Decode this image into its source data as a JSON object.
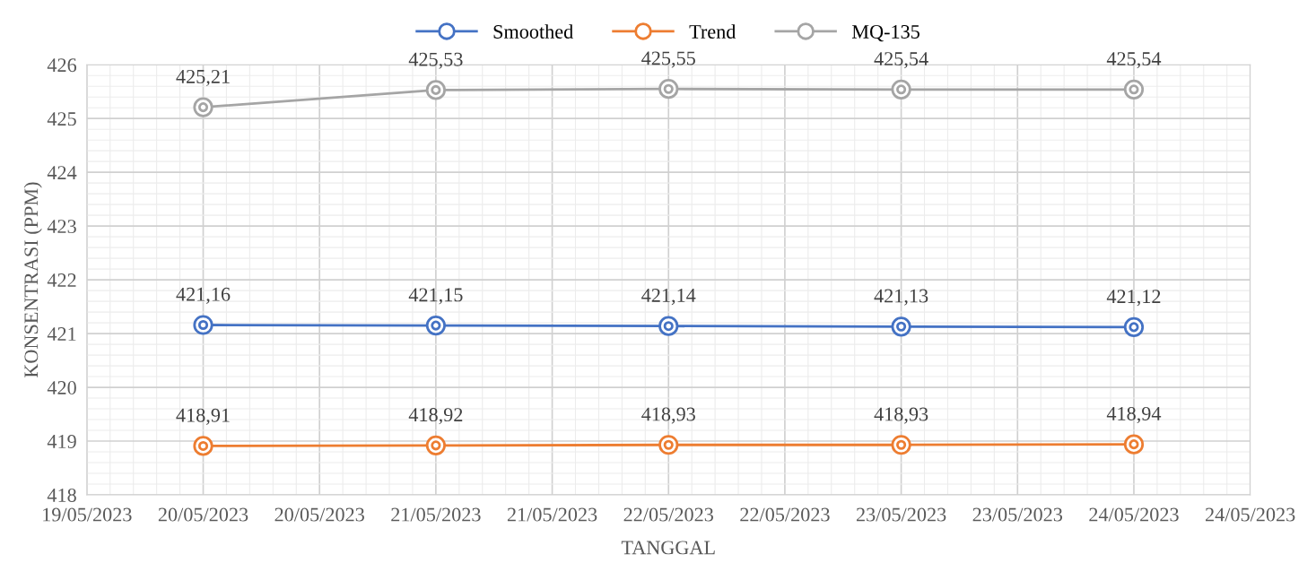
{
  "chart_data": {
    "type": "line",
    "xlabel": "TANGGAL",
    "ylabel": "KONSENTRASI (PPM)",
    "x": [
      "2023-05-20",
      "2023-05-21",
      "2023-05-22",
      "2023-05-23",
      "2023-05-24"
    ],
    "series": [
      {
        "name": "Smoothed",
        "color": "#4472c4",
        "values": [
          421.16,
          421.15,
          421.14,
          421.13,
          421.12
        ],
        "value_labels": [
          "421,16",
          "421,15",
          "421,14",
          "421,13",
          "421,12"
        ]
      },
      {
        "name": "Trend",
        "color": "#ed7d31",
        "values": [
          418.91,
          418.92,
          418.93,
          418.93,
          418.94
        ],
        "value_labels": [
          "418,91",
          "418,92",
          "418,93",
          "418,93",
          "418,94"
        ]
      },
      {
        "name": "MQ-135",
        "color": "#a5a5a5",
        "values": [
          425.21,
          425.53,
          425.55,
          425.54,
          425.54
        ],
        "value_labels": [
          "425,21",
          "425,53",
          "425,55",
          "425,54",
          "425,54"
        ]
      }
    ],
    "xlim": [
      "2023-05-19T12:00",
      "2023-05-24T12:00"
    ],
    "xticks": [
      {
        "value": "2023-05-19T12:00",
        "label": "19/05/2023"
      },
      {
        "value": "2023-05-20",
        "label": "20/05/2023"
      },
      {
        "value": "2023-05-20T12:00",
        "label": "20/05/2023"
      },
      {
        "value": "2023-05-21",
        "label": "21/05/2023"
      },
      {
        "value": "2023-05-21T12:00",
        "label": "21/05/2023"
      },
      {
        "value": "2023-05-22",
        "label": "22/05/2023"
      },
      {
        "value": "2023-05-22T12:00",
        "label": "22/05/2023"
      },
      {
        "value": "2023-05-23",
        "label": "23/05/2023"
      },
      {
        "value": "2023-05-23T12:00",
        "label": "23/05/2023"
      },
      {
        "value": "2023-05-24",
        "label": "24/05/2023"
      },
      {
        "value": "2023-05-24T12:00",
        "label": "24/05/2023"
      }
    ],
    "ylim": [
      418,
      426
    ],
    "yticks": [
      418,
      419,
      420,
      421,
      422,
      423,
      424,
      425,
      426
    ],
    "grid": true,
    "legend": "top",
    "marker": "circle",
    "line_style": "solid"
  }
}
